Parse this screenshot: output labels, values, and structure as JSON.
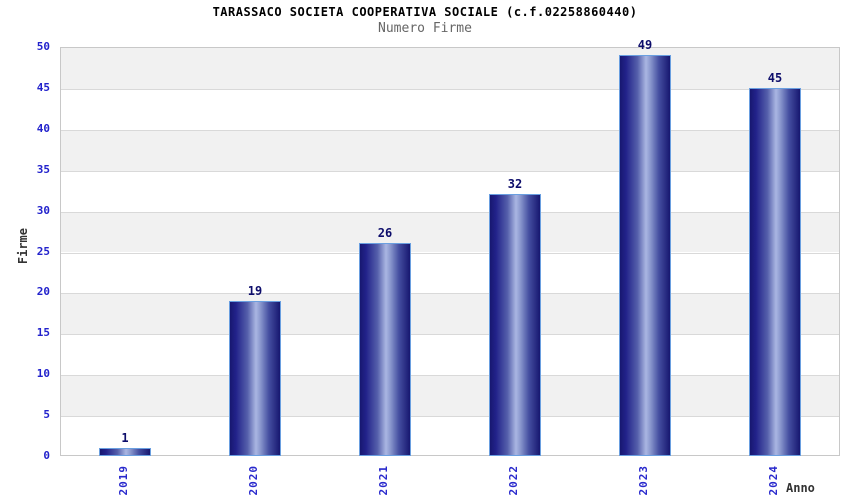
{
  "title": "TARASSACO SOCIETA COOPERATIVA SOCIALE (c.f.02258860440)",
  "subtitle": "Numero Firme",
  "chart_data": {
    "type": "bar",
    "title": "TARASSACO SOCIETA COOPERATIVA SOCIALE (c.f.02258860440)",
    "subtitle": "Numero Firme",
    "categories": [
      "2019",
      "2020",
      "2021",
      "2022",
      "2023",
      "2024"
    ],
    "values": [
      1,
      19,
      26,
      32,
      49,
      45
    ],
    "xlabel": "Anno",
    "ylabel": "Firme",
    "ylim": [
      0,
      50
    ],
    "ytick_step": 5,
    "yticks": [
      0,
      5,
      10,
      15,
      20,
      25,
      30,
      35,
      40,
      45,
      50
    ],
    "grid": "horizontal gridlines with alternating shaded bands",
    "legend_position": "none",
    "colors": {
      "bar_gradient_dark": "#171770",
      "bar_gradient_light": "#aab6e2",
      "bar_border": "#6a9fe0",
      "value_label": "#0d0d6b",
      "tick_label": "#2222cc",
      "band_gray": "#f1f1f1",
      "band_white": "#ffffff",
      "gridline": "#d9d9d9",
      "plot_border": "#c8c8c8",
      "title_color": "#000000",
      "subtitle_color": "#666666",
      "axis_title_color": "#333333"
    }
  }
}
